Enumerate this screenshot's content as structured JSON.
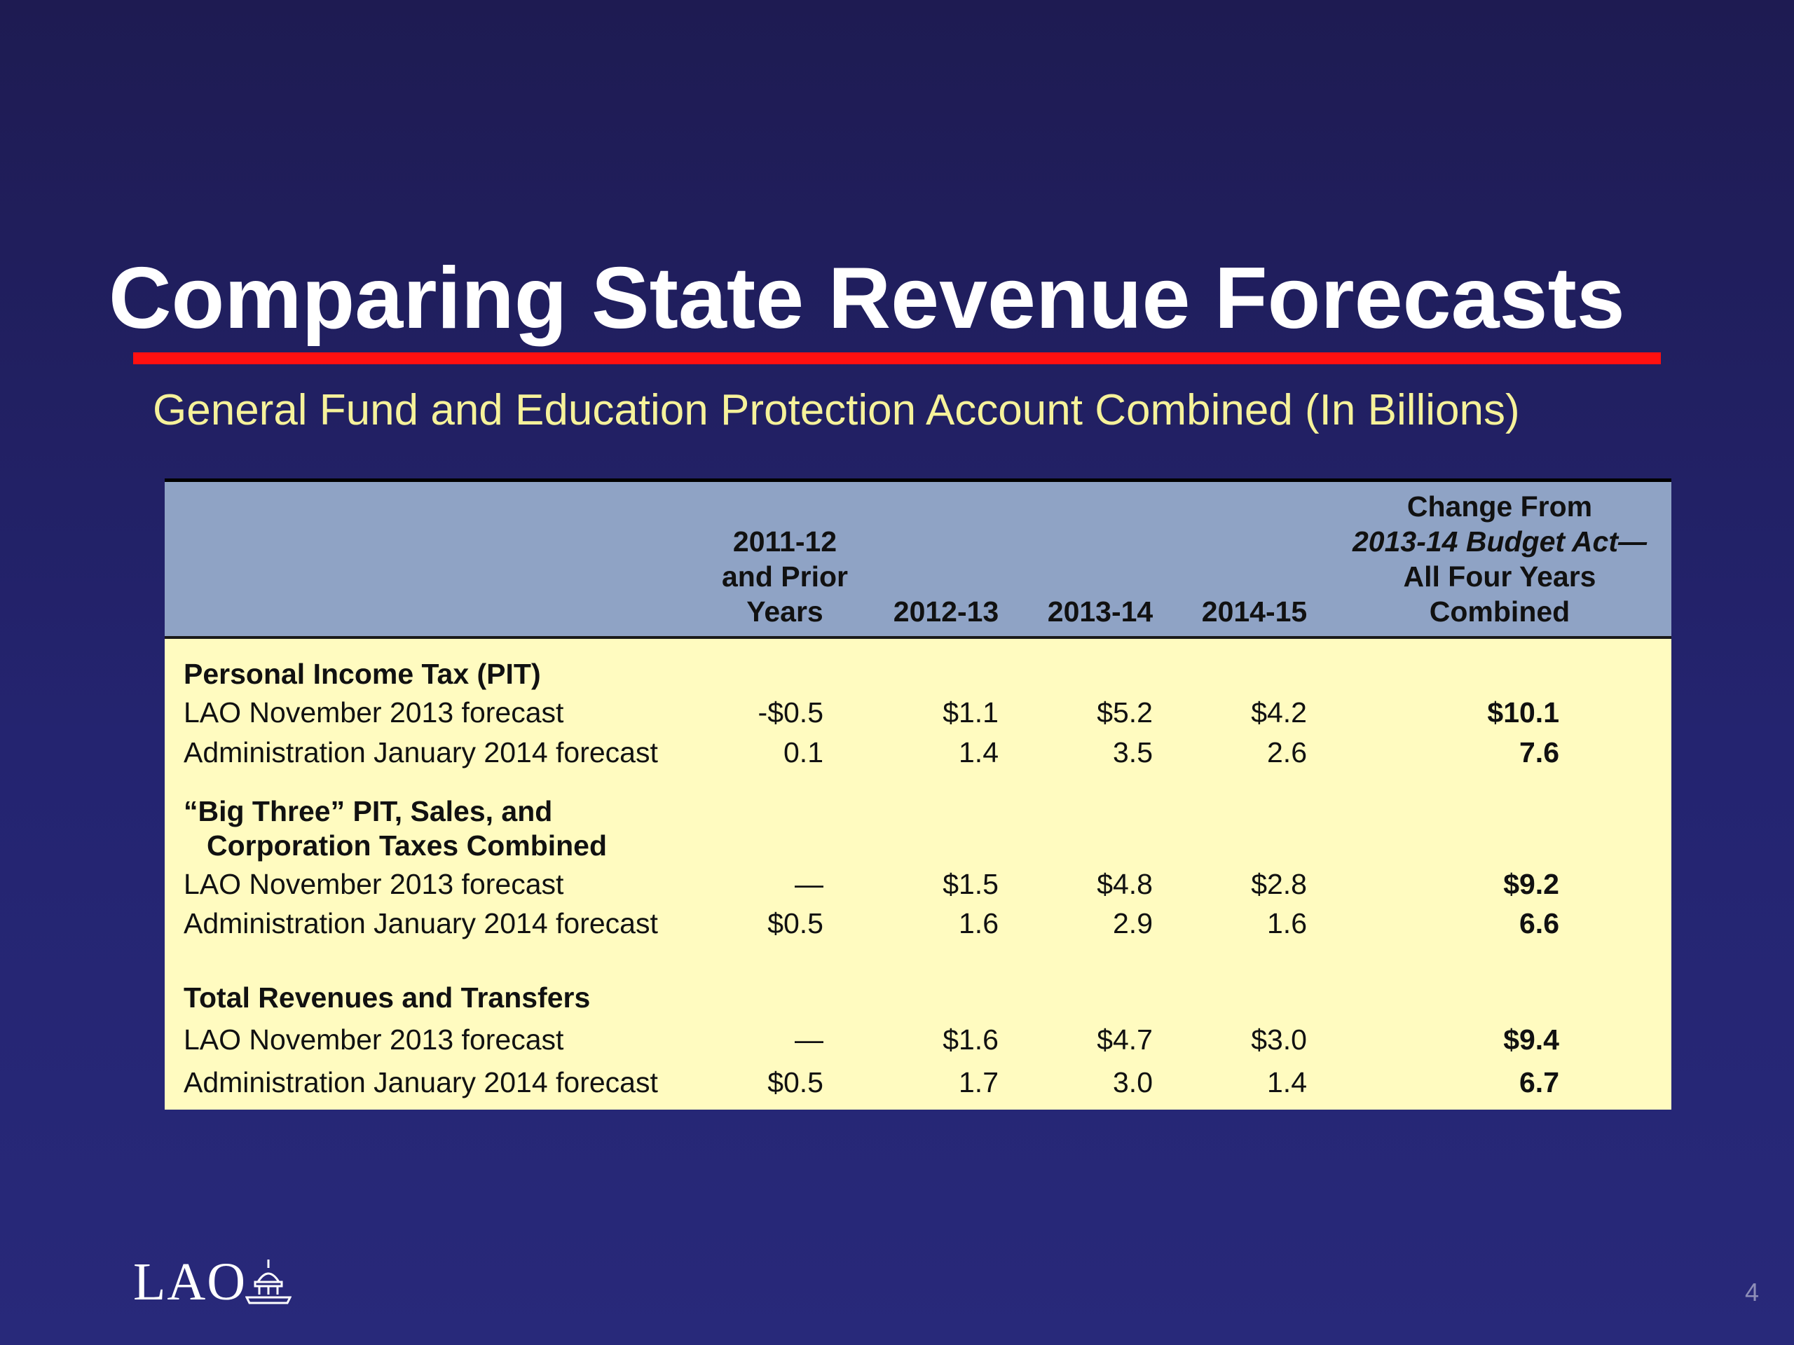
{
  "slide": {
    "title": "Comparing State Revenue Forecasts",
    "subtitle": "General Fund and Education Protection Account Combined (In Billions)",
    "page_number": "4",
    "logo_text": "LAO",
    "colors": {
      "background": "#242470",
      "rule": "#ff1010",
      "header": "#8fa3c5",
      "body": "#fffbc0",
      "subtitle": "#f6f29a"
    }
  },
  "table": {
    "headers": {
      "col1": [
        "2011-12",
        "and Prior",
        "Years"
      ],
      "col2": "2012-13",
      "col3": "2013-14",
      "col4": "2014-15",
      "col5_line1": "Change From",
      "col5_line2": "2013-14 Budget Act—",
      "col5_line3": "All Four Years",
      "col5_line4": "Combined"
    },
    "sections": [
      {
        "title": [
          "Personal Income Tax (PIT)"
        ],
        "rows": [
          {
            "label": "LAO November 2013 forecast",
            "values": [
              "-$0.5",
              "$1.1",
              "$5.2",
              "$4.2",
              "$10.1"
            ]
          },
          {
            "label": "Administration January 2014 forecast",
            "values": [
              "0.1",
              "1.4",
              "3.5",
              "2.6",
              "7.6"
            ]
          }
        ]
      },
      {
        "title": [
          "“Big Three” PIT, Sales, and",
          "Corporation Taxes Combined"
        ],
        "rows": [
          {
            "label": "LAO November 2013 forecast",
            "values": [
              "—",
              "$1.5",
              "$4.8",
              "$2.8",
              "$9.2"
            ]
          },
          {
            "label": "Administration January 2014 forecast",
            "values": [
              "$0.5",
              "1.6",
              "2.9",
              "1.6",
              "6.6"
            ]
          }
        ]
      },
      {
        "title": [
          "Total Revenues and Transfers"
        ],
        "rows": [
          {
            "label": "LAO November 2013 forecast",
            "values": [
              "—",
              "$1.6",
              "$4.7",
              "$3.0",
              "$9.4"
            ]
          },
          {
            "label": "Administration January 2014 forecast",
            "values": [
              "$0.5",
              "1.7",
              "3.0",
              "1.4",
              "6.7"
            ]
          }
        ]
      }
    ]
  }
}
